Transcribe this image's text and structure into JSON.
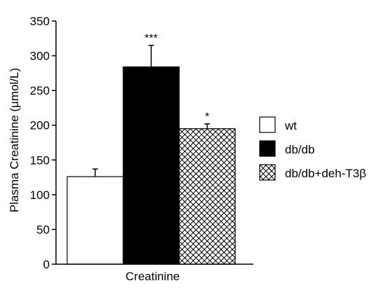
{
  "chart_data": {
    "type": "bar",
    "ylabel": "Plasma Creatinine (µmol/L)",
    "category_label": "Creatinine",
    "ylim": [
      0,
      350
    ],
    "yticks": [
      0,
      50,
      100,
      150,
      200,
      250,
      300,
      350
    ],
    "legend_placement": "right",
    "series": [
      {
        "name": "wt",
        "value": 126,
        "error": 11,
        "significance": "",
        "fill": "white"
      },
      {
        "name": "db/db",
        "value": 284,
        "error": 31,
        "significance": "***",
        "fill": "black"
      },
      {
        "name": "db/db+deh-T3β",
        "value": 195,
        "error": 7,
        "significance": "*",
        "fill": "crosshatch"
      }
    ]
  },
  "colors": {
    "axis": "#000000",
    "solid": "#000000",
    "open": "#ffffff"
  }
}
